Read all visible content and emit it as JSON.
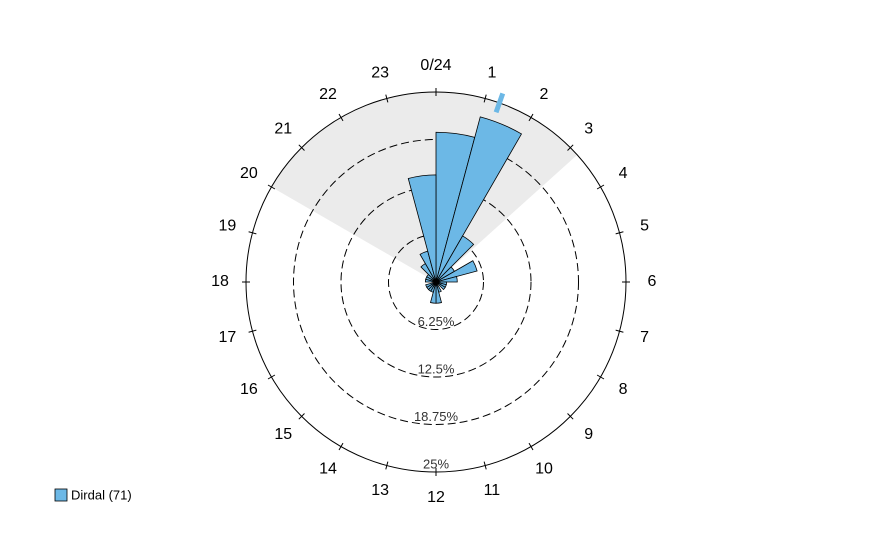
{
  "chart_data": {
    "type": "rose",
    "categories": [
      "0/24",
      "1",
      "2",
      "3",
      "4",
      "5",
      "6",
      "7",
      "8",
      "9",
      "10",
      "11",
      "12",
      "13",
      "14",
      "15",
      "16",
      "17",
      "18",
      "19",
      "20",
      "21",
      "22",
      "23"
    ],
    "series": [
      {
        "name": "Dirdal (71)",
        "color": "#6cb8e6",
        "values": [
          19.7,
          22.5,
          7.0,
          2.8,
          5.6,
          2.8,
          1.4,
          1.4,
          1.4,
          0,
          1.4,
          2.8,
          2.8,
          1.4,
          1.4,
          1.4,
          1.4,
          0,
          1.4,
          1.4,
          1.4,
          2.8,
          4.2,
          14.1
        ]
      }
    ],
    "rlim": [
      0,
      25
    ],
    "rticks": [
      {
        "value": 6.25,
        "label": "6.25%"
      },
      {
        "value": 12.5,
        "label": "12.5%"
      },
      {
        "value": 18.75,
        "label": "18.75%"
      },
      {
        "value": 25,
        "label": "25%"
      }
    ],
    "shade": [
      20,
      3.2
    ],
    "mean": 1.3
  }
}
